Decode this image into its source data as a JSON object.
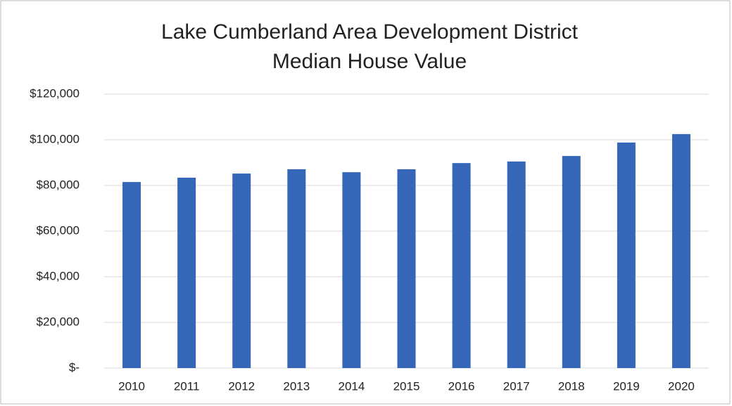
{
  "chart_data": {
    "type": "bar",
    "title": [
      "Lake Cumberland Area Development District",
      "Median House Value"
    ],
    "categories": [
      "2010",
      "2011",
      "2012",
      "2013",
      "2014",
      "2015",
      "2016",
      "2017",
      "2018",
      "2019",
      "2020"
    ],
    "values": [
      81500,
      83400,
      85200,
      87100,
      85800,
      87100,
      89800,
      90500,
      92900,
      98800,
      102500
    ],
    "color": "#3566b8",
    "ylim": [
      0,
      120000
    ],
    "yticks": [
      {
        "value": 0,
        "label": "$-"
      },
      {
        "value": 20000,
        "label": "$20,000"
      },
      {
        "value": 40000,
        "label": "$40,000"
      },
      {
        "value": 60000,
        "label": "$60,000"
      },
      {
        "value": 80000,
        "label": "$80,000"
      },
      {
        "value": 100000,
        "label": "$100,000"
      },
      {
        "value": 120000,
        "label": "$120,000"
      }
    ],
    "grid": true
  }
}
